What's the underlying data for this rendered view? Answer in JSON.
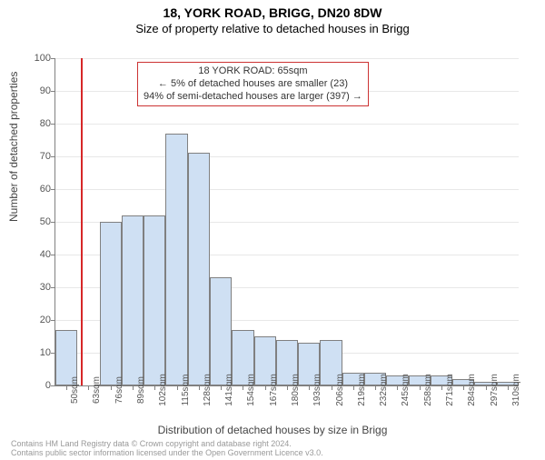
{
  "title": "18, YORK ROAD, BRIGG, DN20 8DW",
  "subtitle": "Size of property relative to detached houses in Brigg",
  "ylabel": "Number of detached properties",
  "xlabel": "Distribution of detached houses by size in Brigg",
  "chart": {
    "type": "histogram",
    "ylim": [
      0,
      100
    ],
    "ytick_step": 10,
    "x_start": 50,
    "x_step": 13,
    "x_count": 21,
    "x_unit": "sqm",
    "bar_fill": "#cfe0f3",
    "bar_border": "#808080",
    "grid_color": "#e8e8e8",
    "axis_color": "#808080",
    "bg": "#ffffff",
    "values": [
      17,
      0,
      50,
      52,
      52,
      77,
      71,
      33,
      17,
      15,
      14,
      13,
      14,
      4,
      4,
      3,
      3,
      3,
      2,
      1,
      1
    ],
    "marker": {
      "value": 65,
      "color": "#d62728"
    }
  },
  "annotation": {
    "line1": "18 YORK ROAD: 65sqm",
    "line2": "← 5% of detached houses are smaller (23)",
    "line3": "94% of semi-detached houses are larger (397) →",
    "border_color": "#cc3333"
  },
  "footer": {
    "line1": "Contains HM Land Registry data © Crown copyright and database right 2024.",
    "line2": "Contains public sector information licensed under the Open Government Licence v3.0."
  },
  "fonts": {
    "title_size": 14,
    "subtitle_size": 13,
    "label_size": 12,
    "tick_size": 11
  }
}
